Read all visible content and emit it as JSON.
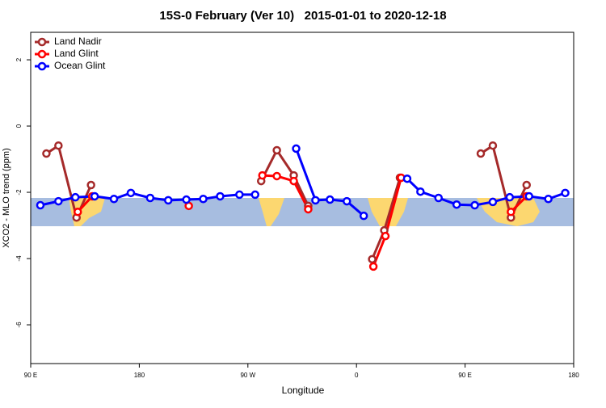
{
  "chart_data": {
    "type": "line",
    "title": "15S-0 February (Ver 10)   2015-01-01 to 2020-12-18",
    "xlabel": "Longitude",
    "ylabel": "XCO2 - MLO trend (ppm)",
    "xlim": [
      90,
      540
    ],
    "xticks": [
      {
        "value": 90,
        "label": "90 E"
      },
      180,
      {
        "value": 270,
        "label": "90 W"
      },
      {
        "value": 360,
        "label": "0"
      },
      {
        "value": 450,
        "label": "90 E"
      },
      {
        "value": 540,
        "label": "180"
      }
    ],
    "ylim": [
      -7.17,
      2.83
    ],
    "yticks": [
      2,
      0,
      -2,
      -4,
      -6
    ],
    "legend": "topleft",
    "series": [
      {
        "name": "Land Nadir",
        "color": "#a52a2a",
        "x": [
          103,
          113,
          128,
          140,
          210,
          281,
          294,
          308,
          320,
          347,
          373,
          383,
          396,
          430,
          463,
          473,
          488,
          501
        ],
        "values": [
          -0.83,
          -0.59,
          -2.76,
          -1.78,
          null,
          -1.66,
          -0.73,
          -1.49,
          -2.41,
          null,
          -4.02,
          -3.15,
          -1.56,
          null,
          -0.83,
          -0.59,
          -2.76,
          -1.78
        ]
      },
      {
        "name": "Land Glint",
        "color": "#ff0000",
        "x": [
          129,
          141,
          180,
          221,
          250,
          282,
          294,
          308,
          320,
          347,
          374,
          384,
          397,
          440,
          488,
          501
        ],
        "values": [
          -2.59,
          -2.12,
          null,
          -2.41,
          null,
          -1.49,
          -1.51,
          -1.66,
          -2.51,
          null,
          -4.24,
          -3.32,
          -1.56,
          null,
          -2.59,
          -2.12
        ]
      },
      {
        "name": "Ocean Glint",
        "color": "#0000ff",
        "x": [
          98,
          113,
          127,
          143,
          159,
          173,
          189,
          204,
          219,
          233,
          247,
          263,
          276,
          293,
          310,
          326,
          338,
          352,
          366,
          384,
          402,
          413,
          428,
          443,
          458,
          473,
          487,
          503,
          519,
          533
        ],
        "values": [
          -2.39,
          -2.27,
          -2.15,
          -2.12,
          -2.2,
          -2.02,
          -2.17,
          -2.24,
          -2.22,
          -2.2,
          -2.12,
          -2.07,
          -2.07,
          null,
          -0.68,
          -2.24,
          -2.22,
          -2.27,
          -2.71,
          null,
          -1.59,
          -1.98,
          -2.17,
          -2.37,
          -2.39,
          -2.29,
          -2.15,
          -2.12,
          -2.2,
          -2.02
        ]
      }
    ]
  }
}
